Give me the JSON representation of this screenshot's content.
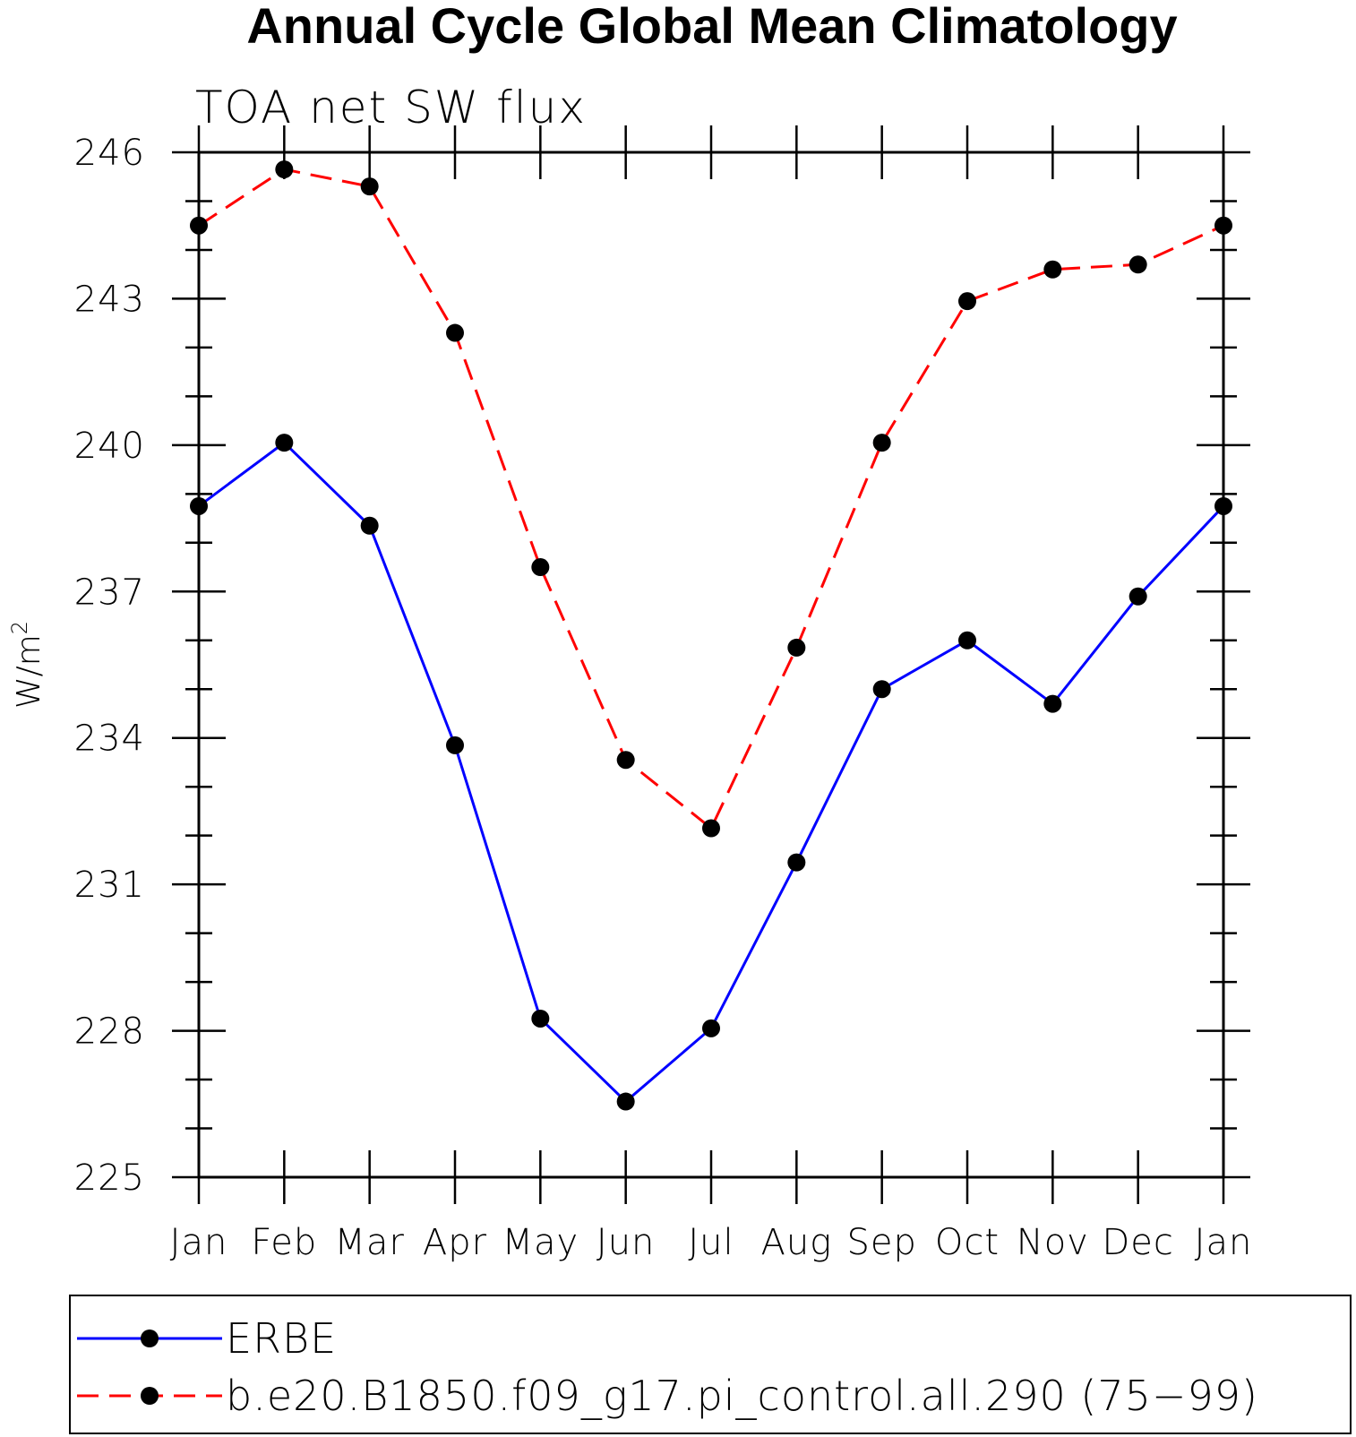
{
  "chart_data": {
    "type": "line",
    "title": "Annual Cycle Global Mean Climatology",
    "subtitle": "TOA net SW flux",
    "ylabel": "W/m",
    "ylabel_superscript": "2",
    "xlabel": "",
    "categories": [
      "Jan",
      "Feb",
      "Mar",
      "Apr",
      "May",
      "Jun",
      "Jul",
      "Aug",
      "Sep",
      "Oct",
      "Nov",
      "Dec",
      "Jan"
    ],
    "ylim": [
      225,
      246
    ],
    "yticks": [
      225,
      228,
      231,
      234,
      237,
      240,
      243,
      246
    ],
    "grid": false,
    "legend_position": "bottom",
    "series": [
      {
        "name": "ERBE",
        "color": "#0000ff",
        "dash": "solid",
        "marker": "filled-circle",
        "values": [
          238.75,
          240.05,
          238.35,
          233.85,
          228.25,
          226.55,
          228.05,
          231.45,
          235.0,
          236.0,
          234.7,
          236.9,
          238.75
        ]
      },
      {
        "name": "b.e20.B1850.f09_g17.pi_control.all.290 (75−99)",
        "color": "#ff0000",
        "dash": "dashed",
        "marker": "filled-circle",
        "values": [
          244.5,
          245.65,
          245.3,
          242.3,
          237.5,
          233.55,
          232.15,
          235.85,
          240.05,
          242.95,
          243.6,
          243.7,
          244.5
        ]
      }
    ]
  }
}
